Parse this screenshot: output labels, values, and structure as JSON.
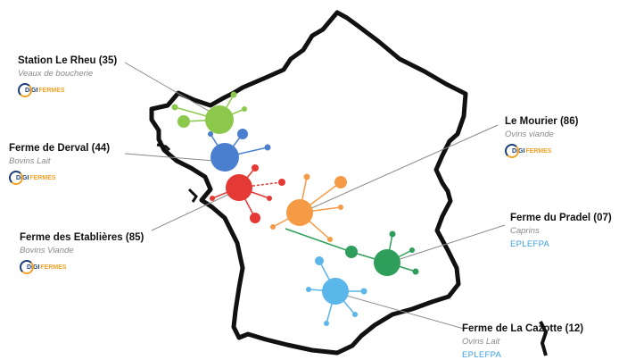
{
  "brand": {
    "digi": "DIGI",
    "fermes": "FERMES"
  },
  "farms": [
    {
      "name": "Station Le Rheu (35)",
      "type": "Veaux de boucherie",
      "org": ""
    },
    {
      "name": "Ferme de Derval (44)",
      "type": "Bovins Lait",
      "org": ""
    },
    {
      "name": "Ferme des Etablières (85)",
      "type": "Bovins Viande",
      "org": ""
    },
    {
      "name": "Le Mourier (86)",
      "type": "Ovins viande",
      "org": ""
    },
    {
      "name": "Ferme du Pradel (07)",
      "type": "Caprins",
      "org": "EPLEFPA"
    },
    {
      "name": "Ferme de La Cazotte (12)",
      "type": "Ovins Lait",
      "org": "EPLEFPA"
    }
  ],
  "colors": {
    "le_rheu": "#8cc84b",
    "derval": "#4a7fd0",
    "etablieres": "#e53935",
    "mourier": "#f59a45",
    "pradel": "#2e9e5a",
    "cazotte": "#5bb6ea"
  }
}
